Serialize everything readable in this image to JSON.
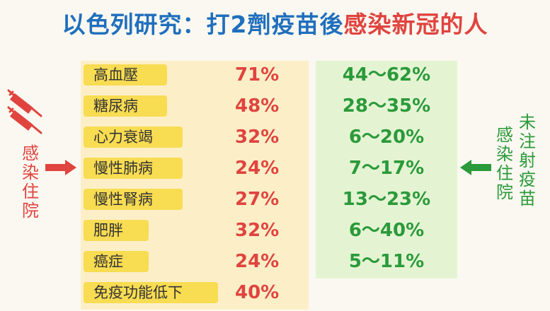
{
  "title": {
    "part1": "以色列研究：打2劑疫苗後",
    "part2": "感染新冠的人"
  },
  "left_label_chars": [
    "感",
    "染",
    "住",
    "院"
  ],
  "right_label_col1": [
    "未",
    "注",
    "射",
    "疫",
    "苗"
  ],
  "right_label_col2": [
    "感",
    "染",
    "住",
    "院"
  ],
  "rows": [
    {
      "label": "高血壓",
      "pct": "71%",
      "range": "44～62%"
    },
    {
      "label": "糖尿病",
      "pct": "48%",
      "range": "28～35%"
    },
    {
      "label": "心力衰竭",
      "pct": "32%",
      "range": "6～20%"
    },
    {
      "label": "慢性肺病",
      "pct": "24%",
      "range": "7～17%"
    },
    {
      "label": "慢性腎病",
      "pct": "27%",
      "range": "13～23%"
    },
    {
      "label": "肥胖",
      "pct": "32%",
      "range": "6～40%"
    },
    {
      "label": "癌症",
      "pct": "24%",
      "range": "5～11%"
    },
    {
      "label": "免疫功能低下",
      "pct": "40%",
      "range": ""
    }
  ],
  "colors": {
    "blue": "#1f6fbd",
    "red": "#e0443f",
    "green": "#2b9a3a",
    "yellow": "#f8dc52"
  },
  "icons": [
    "syringe-icon",
    "arrow-right-icon",
    "arrow-left-icon"
  ]
}
